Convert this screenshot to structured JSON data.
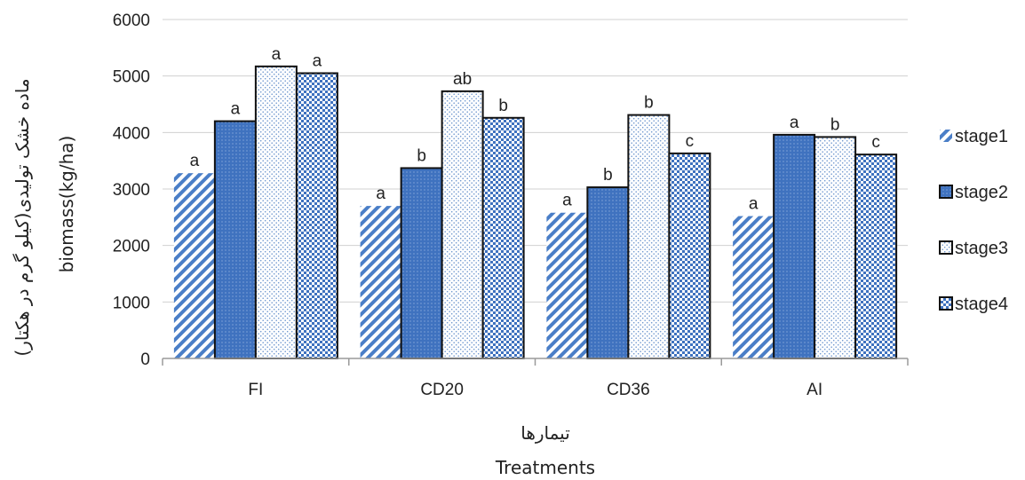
{
  "chart_data": {
    "type": "bar",
    "categories": [
      "FI",
      "CD20",
      "CD36",
      "AI"
    ],
    "series": [
      {
        "name": "stage1",
        "values": [
          3280,
          2700,
          2580,
          2520
        ],
        "labels": [
          "a",
          "a",
          "a",
          "a"
        ],
        "pattern": "diagonal-stripes",
        "color": "#4a7ec7"
      },
      {
        "name": "stage2",
        "values": [
          4200,
          3370,
          3030,
          3960
        ],
        "labels": [
          "a",
          "b",
          "b",
          "a"
        ],
        "pattern": "dotted-solid",
        "color": "#3f72bf"
      },
      {
        "name": "stage3",
        "values": [
          5170,
          4730,
          4310,
          3920
        ],
        "labels": [
          "a",
          "ab",
          "b",
          "b"
        ],
        "pattern": "light-dots",
        "color": "#ffffff"
      },
      {
        "name": "stage4",
        "values": [
          5050,
          4260,
          3630,
          3610
        ],
        "labels": [
          "a",
          "b",
          "c",
          "c"
        ],
        "pattern": "checker",
        "color": "#4a7ec7"
      }
    ],
    "ylim": [
      0,
      6000
    ],
    "yticks": [
      0,
      1000,
      2000,
      3000,
      4000,
      5000,
      6000
    ],
    "ylabel_fa": "ماده خشک تولیدی(کیلو گرم در هکتار)",
    "ylabel_en": "biomass(kg/ha)",
    "xlabel_fa": "تیمارها",
    "xlabel_en": "Treatments",
    "legend_position": "right",
    "grid": "horizontal"
  }
}
